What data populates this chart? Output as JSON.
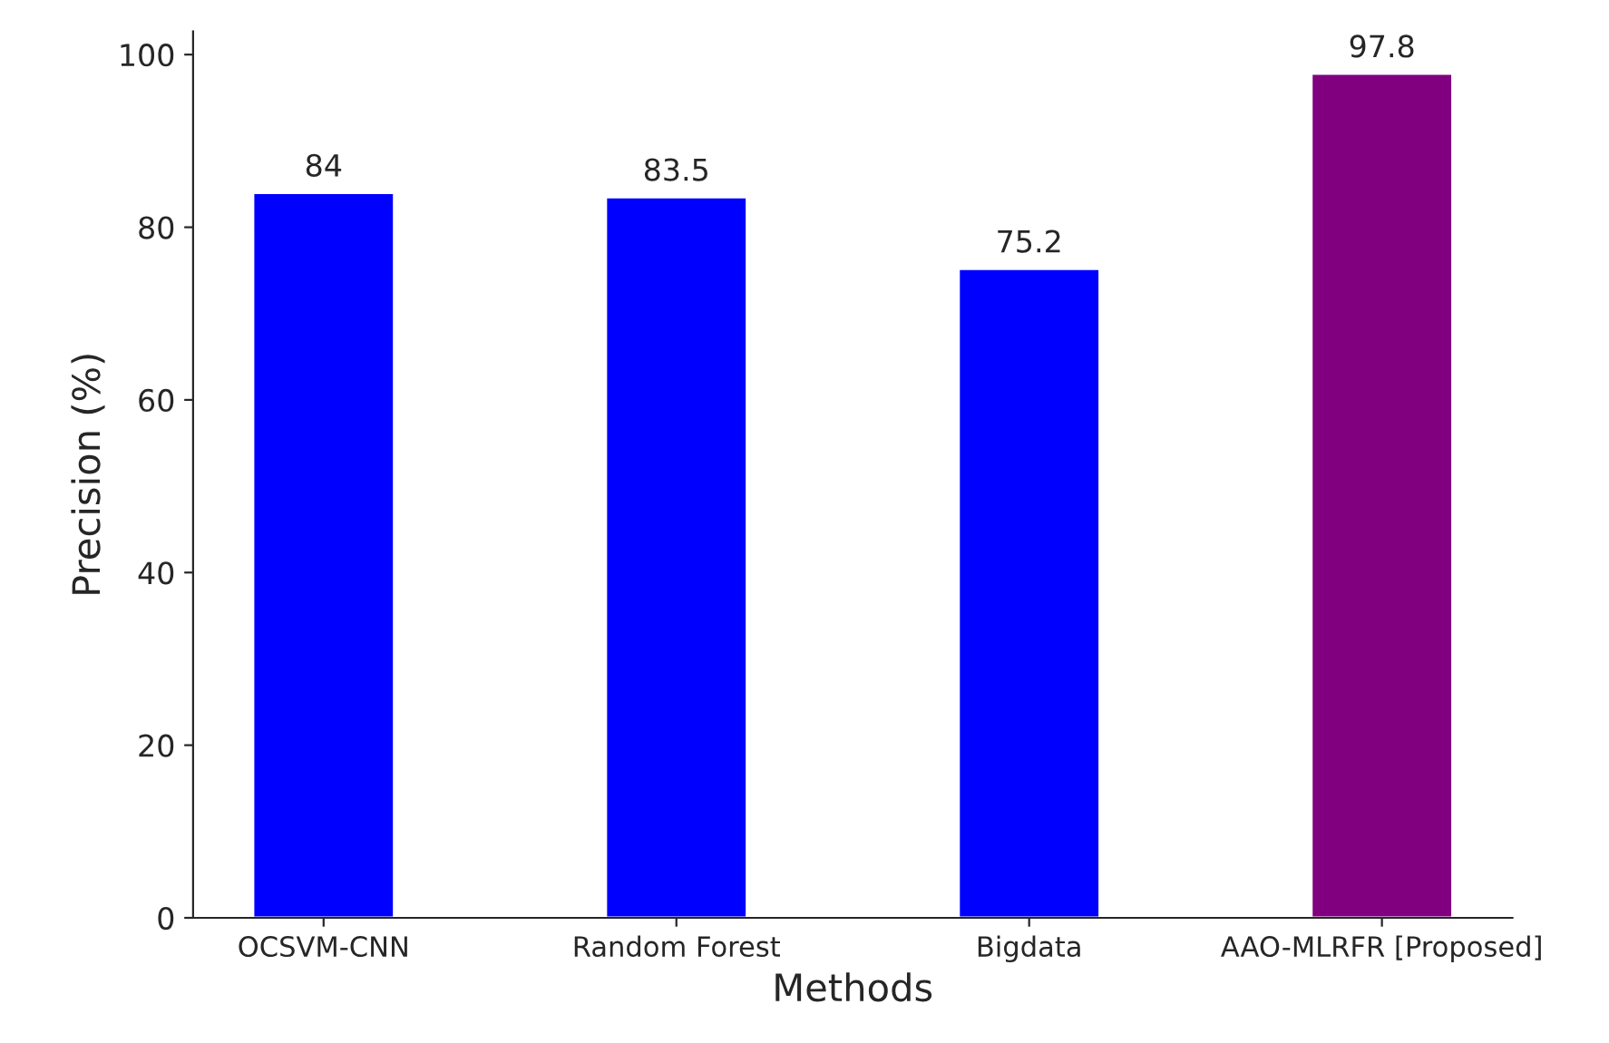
{
  "chart_data": {
    "type": "bar",
    "xlabel": "Methods",
    "ylabel": "Precision (%)",
    "categories": [
      "OCSVM-CNN",
      "Random Forest",
      "Bigdata",
      "AAO-MLRFR [Proposed]"
    ],
    "values": [
      84,
      83.5,
      75.2,
      97.8
    ],
    "colors": [
      "#0000ff",
      "#0000ff",
      "#0000ff",
      "#800080"
    ],
    "ylim": [
      0,
      102.7
    ],
    "yticks": [
      0,
      20,
      40,
      60,
      80,
      100
    ],
    "data_labels": true,
    "grid": false,
    "legend": false
  }
}
